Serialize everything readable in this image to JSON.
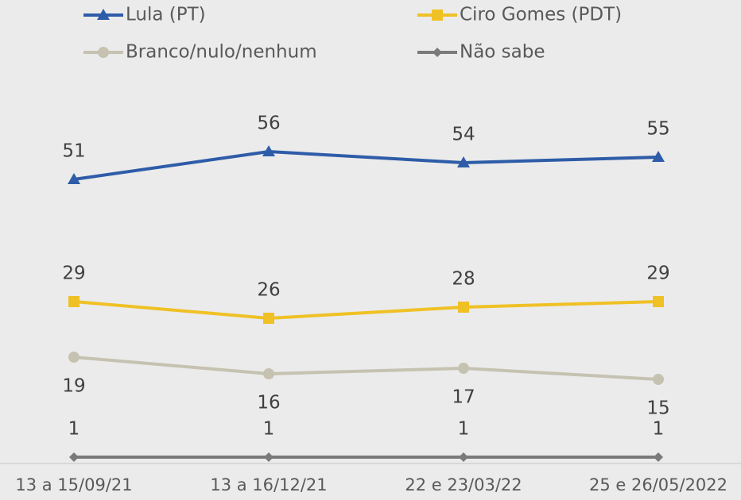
{
  "chart_data": {
    "type": "line",
    "categories": [
      "13 a 15/09/21",
      "13 a 16/12/21",
      "22 e 23/03/22",
      "25 e 26/05/2022"
    ],
    "ylim": [
      0,
      60
    ],
    "series": [
      {
        "name": "Lula (PT)",
        "color": "#2e5ca8",
        "marker": "triangle",
        "label_position": "above",
        "values": [
          51,
          56,
          54,
          55
        ]
      },
      {
        "name": "Ciro Gomes (PDT)",
        "color": "#efc125",
        "marker": "square",
        "label_position": "above",
        "values": [
          29,
          26,
          28,
          29
        ]
      },
      {
        "name": "Branco/nulo/nenhum",
        "color": "#c6c2b1",
        "marker": "circle",
        "label_position": "below",
        "values": [
          19,
          16,
          17,
          15
        ]
      },
      {
        "name": "Não sabe",
        "color": "#7a7a7a",
        "marker": "diamond",
        "label_position": "above",
        "values": [
          1,
          1,
          1,
          1
        ]
      }
    ]
  }
}
